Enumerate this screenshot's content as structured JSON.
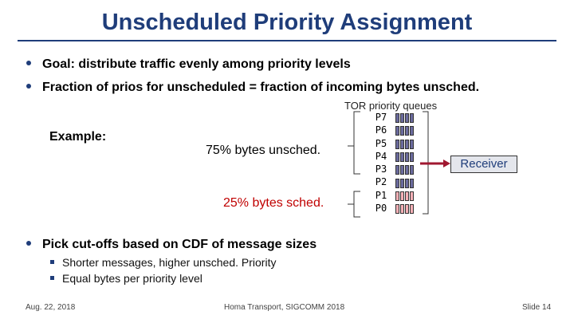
{
  "title": "Unscheduled Priority Assignment",
  "bullets": [
    "Goal: distribute traffic evenly among priority levels",
    "Fraction of prios for unscheduled = fraction of incoming bytes unsched."
  ],
  "example_label": "Example:",
  "unsched_label": "75% bytes unsched.",
  "sched_label": "25% bytes sched.",
  "queues_label": "TOR priority queues",
  "priorities": [
    "P7",
    "P6",
    "P5",
    "P4",
    "P3",
    "P2",
    "P1",
    "P0"
  ],
  "receiver_label": "Receiver",
  "bullet3": "Pick cut-offs based on CDF of message sizes",
  "sub_bullets": [
    "Shorter messages, higher unsched. Priority",
    "Equal bytes per priority level"
  ],
  "footer": {
    "date": "Aug. 22, 2018",
    "center": "Homa Transport, SIGCOMM 2018",
    "slide": "Slide 14"
  },
  "colors": {
    "title": "#1f3d7a",
    "sched_text": "#c00000",
    "unsched_queue": "#6b6b9e",
    "sched_queue": "#f4b0b6",
    "arrow": "#a01830"
  }
}
